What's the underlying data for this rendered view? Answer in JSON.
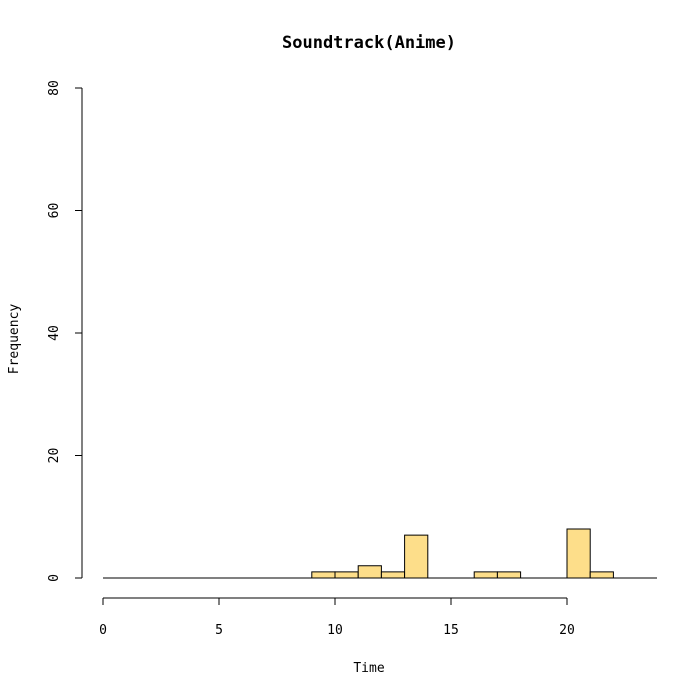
{
  "chart_data": {
    "type": "bar",
    "title": "Soundtrack(Anime)",
    "xlabel": "Time",
    "ylabel": "Frequency",
    "xlim": [
      0,
      24
    ],
    "ylim": [
      0,
      80
    ],
    "x_ticks": [
      "0",
      "5",
      "10",
      "15",
      "20"
    ],
    "y_ticks": [
      "0",
      "20",
      "40",
      "60",
      "80"
    ],
    "bin_width": 1,
    "bins": [
      {
        "start": 9,
        "end": 10,
        "value": 1
      },
      {
        "start": 10,
        "end": 11,
        "value": 1
      },
      {
        "start": 11,
        "end": 12,
        "value": 2
      },
      {
        "start": 12,
        "end": 13,
        "value": 1
      },
      {
        "start": 13,
        "end": 14,
        "value": 7
      },
      {
        "start": 16,
        "end": 17,
        "value": 1
      },
      {
        "start": 17,
        "end": 18,
        "value": 1
      },
      {
        "start": 20,
        "end": 21,
        "value": 8
      },
      {
        "start": 21,
        "end": 22,
        "value": 1
      }
    ],
    "bar_color": "#FDDE8A",
    "grid": false,
    "legend": "none"
  }
}
